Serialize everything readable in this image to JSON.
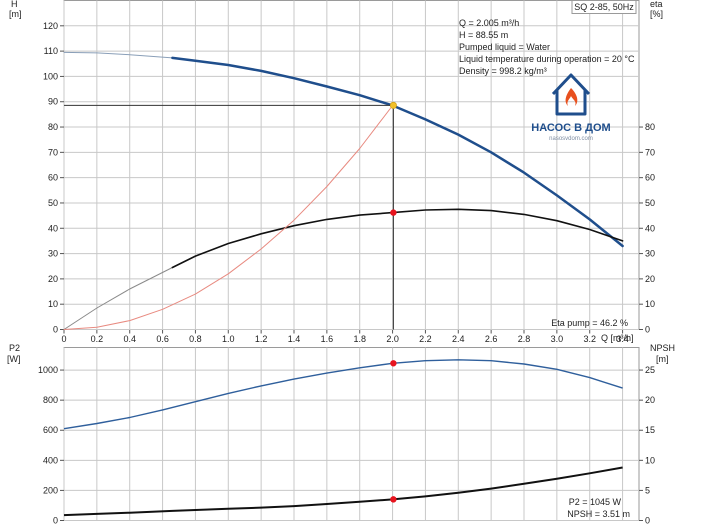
{
  "chart_data": [
    {
      "type": "line",
      "panel": "top",
      "title": "SQ 2-85, 50Hz",
      "xlabel": "Q [m³/h]",
      "ylabel_left": [
        "H",
        "[m]"
      ],
      "ylabel_right": [
        "eta",
        "[%]"
      ],
      "xlim": [
        0,
        3.5
      ],
      "ylim_left": [
        0,
        130
      ],
      "ylim_right": [
        0,
        130
      ],
      "grid": true,
      "x_ticks": [
        "0",
        "0.2",
        "0.4",
        "0.6",
        "0.8",
        "1.0",
        "1.2",
        "1.4",
        "1.6",
        "1.8",
        "2.0",
        "2.2",
        "2.4",
        "2.6",
        "2.8",
        "3.0",
        "3.2",
        "3.4"
      ],
      "y_left_ticks": [
        "0",
        "10",
        "20",
        "30",
        "40",
        "50",
        "60",
        "70",
        "80",
        "90",
        "100",
        "110",
        "120"
      ],
      "y_right_ticks": [
        "0",
        "10",
        "20",
        "30",
        "40",
        "50",
        "60",
        "70",
        "80"
      ],
      "info_lines": [
        "Q = 2.005 m³/h",
        "H = 88.55 m",
        "Pumped liquid = Water",
        "Liquid temperature during operation = 20 °C",
        "Density = 998.2 kg/m³"
      ],
      "operating_point": {
        "q": 2.005,
        "h": 88.55,
        "eta": 46.2
      },
      "eta_label": "Eta pump = 46.2 %",
      "series": [
        {
          "role": "head-thin",
          "color": "#8a9fb8",
          "x": [
            0,
            0.2,
            0.4,
            0.66
          ],
          "y": [
            109.5,
            109.3,
            108.6,
            107.3
          ]
        },
        {
          "role": "head",
          "color": "#1f4e8c",
          "x": [
            0.66,
            0.8,
            1.0,
            1.2,
            1.4,
            1.6,
            1.8,
            2.0,
            2.2,
            2.4,
            2.6,
            2.8,
            3.0,
            3.2,
            3.4
          ],
          "y": [
            107.3,
            106.2,
            104.5,
            102.2,
            99.3,
            96.0,
            92.6,
            88.5,
            83.0,
            77.0,
            70.0,
            62.0,
            53.0,
            43.5,
            33.0
          ]
        },
        {
          "role": "eta-thin",
          "color": "#8a8a8a",
          "x": [
            0,
            0.2,
            0.4,
            0.66
          ],
          "y": [
            0,
            8.5,
            16.0,
            24.5
          ]
        },
        {
          "role": "eta",
          "color": "#111111",
          "x": [
            0.66,
            0.8,
            1.0,
            1.2,
            1.4,
            1.6,
            1.8,
            2.0,
            2.2,
            2.4,
            2.6,
            2.8,
            3.0,
            3.2,
            3.4
          ],
          "y": [
            24.5,
            29.0,
            34.0,
            37.8,
            41.0,
            43.5,
            45.2,
            46.2,
            47.2,
            47.5,
            47.0,
            45.5,
            43.0,
            39.5,
            35.0
          ]
        },
        {
          "role": "system-curve",
          "color": "#e88a80",
          "x": [
            0,
            0.2,
            0.4,
            0.6,
            0.8,
            1.0,
            1.2,
            1.4,
            1.6,
            1.8,
            2.0
          ],
          "y": [
            0,
            0.9,
            3.5,
            8.0,
            14.0,
            22.0,
            31.8,
            43.2,
            56.5,
            71.5,
            88.5
          ]
        }
      ]
    },
    {
      "type": "line",
      "panel": "bottom",
      "ylabel_left": [
        "P2",
        "[W]"
      ],
      "ylabel_right": [
        "NPSH",
        "[m]"
      ],
      "xlim": [
        0,
        3.5
      ],
      "ylim_left": [
        0,
        1150
      ],
      "ylim_right": [
        0,
        28.75
      ],
      "grid": true,
      "y_left_ticks": [
        "0",
        "200",
        "400",
        "600",
        "800",
        "1000"
      ],
      "y_right_ticks": [
        "0",
        "5",
        "10",
        "15",
        "20",
        "25"
      ],
      "operating_point": {
        "q": 2.005,
        "p2": 1045,
        "npsh": 3.51
      },
      "p2_label": "P2 = 1045 W",
      "npsh_label": "NPSH = 3.51 m",
      "series": [
        {
          "role": "p2",
          "color": "#2f5f9c",
          "x": [
            0,
            0.2,
            0.4,
            0.6,
            0.8,
            1.0,
            1.2,
            1.4,
            1.6,
            1.8,
            2.0,
            2.2,
            2.4,
            2.6,
            2.8,
            3.0,
            3.2,
            3.4
          ],
          "y": [
            610,
            645,
            685,
            735,
            790,
            845,
            895,
            940,
            980,
            1015,
            1045,
            1062,
            1068,
            1062,
            1040,
            1005,
            950,
            880
          ]
        },
        {
          "role": "npsh",
          "color": "#111111",
          "x": [
            0,
            0.2,
            0.4,
            0.66,
            0.8,
            1.0,
            1.2,
            1.4,
            1.6,
            1.8,
            2.0,
            2.2,
            2.4,
            2.6,
            2.8,
            3.0,
            3.2,
            3.4
          ],
          "y": [
            0.9,
            1.1,
            1.3,
            1.6,
            1.75,
            1.95,
            2.15,
            2.4,
            2.75,
            3.1,
            3.51,
            4.0,
            4.6,
            5.3,
            6.1,
            6.95,
            7.85,
            8.8
          ]
        }
      ]
    }
  ],
  "logo": {
    "name": "НАСОС В ДОМ",
    "site": "nasosvdom.com",
    "house_color": "#1f4e8c",
    "flame_color": "#e8501e"
  },
  "colors": {
    "operating_point_red": "#e8141e",
    "operating_point_yellow": "#f2c029",
    "marker_line": "#333333"
  }
}
